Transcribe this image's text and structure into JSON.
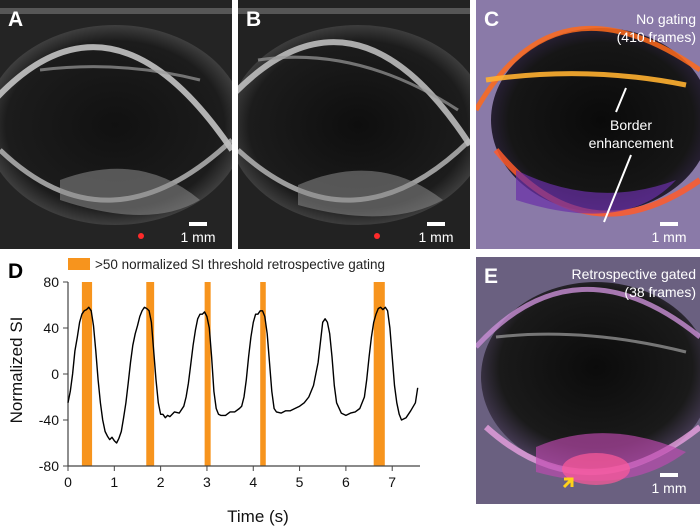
{
  "panels": {
    "a": {
      "label": "A",
      "scale": "1 mm"
    },
    "b": {
      "label": "B",
      "scale": "1 mm"
    },
    "c": {
      "label": "C",
      "scale": "1 mm",
      "title_line1": "No gating",
      "title_line2": "(410 frames)",
      "annotation_line1": "Border",
      "annotation_line2": "enhancement"
    },
    "e": {
      "label": "E",
      "scale": "1 mm",
      "title_line1": "Retrospective gated",
      "title_line2": "(38 frames)"
    }
  },
  "chart_data": {
    "type": "line",
    "panel_label": "D",
    "title": "",
    "xlabel": "Time (s)",
    "ylabel": "Normalized SI",
    "xlim": [
      0,
      7.6
    ],
    "ylim": [
      -80,
      80
    ],
    "xticks": [
      0,
      1,
      2,
      3,
      4,
      5,
      6,
      7
    ],
    "yticks": [
      -80,
      -40,
      0,
      40,
      80
    ],
    "legend": ">50 normalized SI threshold retrospective gating",
    "gating_windows": [
      [
        0.3,
        0.52
      ],
      [
        1.69,
        1.86
      ],
      [
        2.95,
        3.08
      ],
      [
        4.15,
        4.27
      ],
      [
        6.6,
        6.84
      ]
    ],
    "series": [
      {
        "name": "Normalized SI",
        "x": [
          0,
          0.05,
          0.1,
          0.15,
          0.2,
          0.25,
          0.3,
          0.35,
          0.4,
          0.45,
          0.5,
          0.55,
          0.6,
          0.65,
          0.7,
          0.75,
          0.8,
          0.85,
          0.9,
          0.95,
          1.0,
          1.05,
          1.1,
          1.15,
          1.2,
          1.25,
          1.3,
          1.35,
          1.4,
          1.45,
          1.5,
          1.55,
          1.6,
          1.65,
          1.7,
          1.75,
          1.8,
          1.85,
          1.9,
          1.95,
          2.0,
          2.05,
          2.1,
          2.15,
          2.2,
          2.3,
          2.4,
          2.5,
          2.55,
          2.6,
          2.65,
          2.7,
          2.75,
          2.8,
          2.85,
          2.9,
          2.95,
          3.0,
          3.05,
          3.1,
          3.15,
          3.2,
          3.25,
          3.3,
          3.4,
          3.5,
          3.6,
          3.7,
          3.75,
          3.8,
          3.85,
          3.9,
          3.95,
          4.0,
          4.05,
          4.1,
          4.15,
          4.2,
          4.25,
          4.3,
          4.35,
          4.4,
          4.45,
          4.5,
          4.6,
          4.7,
          4.8,
          4.9,
          5.0,
          5.1,
          5.2,
          5.3,
          5.4,
          5.5,
          5.55,
          5.6,
          5.65,
          5.7,
          5.75,
          5.8,
          5.9,
          6.0,
          6.1,
          6.2,
          6.3,
          6.4,
          6.45,
          6.5,
          6.55,
          6.6,
          6.65,
          6.7,
          6.75,
          6.8,
          6.85,
          6.9,
          6.95,
          7.0,
          7.05,
          7.1,
          7.15,
          7.2,
          7.3,
          7.4,
          7.5,
          7.55
        ],
        "y": [
          -25,
          -15,
          0,
          20,
          32,
          45,
          52,
          55,
          56,
          58,
          55,
          42,
          20,
          -5,
          -25,
          -40,
          -50,
          -54,
          -57,
          -55,
          -58,
          -60,
          -56,
          -50,
          -38,
          -25,
          -8,
          10,
          25,
          35,
          42,
          50,
          55,
          58,
          57,
          55,
          45,
          20,
          -5,
          -25,
          -35,
          -35,
          -38,
          -36,
          -37,
          -33,
          -34,
          -28,
          -20,
          -8,
          8,
          25,
          38,
          48,
          52,
          52,
          54,
          50,
          40,
          15,
          -15,
          -30,
          -35,
          -36,
          -36,
          -33,
          -33,
          -30,
          -28,
          -20,
          -5,
          15,
          32,
          45,
          52,
          52,
          55,
          55,
          50,
          35,
          10,
          -15,
          -30,
          -33,
          -34,
          -32,
          -32,
          -30,
          -28,
          -25,
          -20,
          -10,
          10,
          45,
          48,
          45,
          35,
          15,
          -10,
          -25,
          -34,
          -36,
          -34,
          -33,
          -30,
          -20,
          -5,
          15,
          32,
          45,
          52,
          57,
          58,
          56,
          58,
          55,
          40,
          15,
          -10,
          -25,
          -35,
          -40,
          -38,
          -32,
          -25,
          -12
        ]
      }
    ]
  }
}
